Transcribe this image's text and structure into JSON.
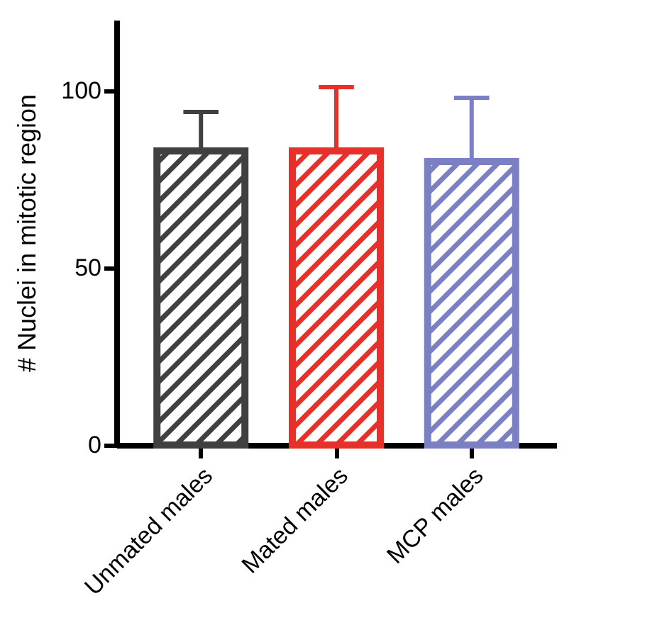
{
  "chart_data": {
    "type": "bar",
    "ylabel": "# Nuclei in mitotic region",
    "categories": [
      "Unmated males",
      "Mated males",
      "MCP males"
    ],
    "values": [
      83,
      83,
      80
    ],
    "colors": [
      "#404040",
      "#e8302a",
      "#7b7fc4"
    ],
    "errors": [
      [
        83,
        94
      ],
      [
        83,
        101
      ],
      [
        80,
        98
      ]
    ],
    "ylim": [
      0,
      120
    ],
    "yticks": [
      0,
      50,
      100
    ],
    "grid": false
  }
}
